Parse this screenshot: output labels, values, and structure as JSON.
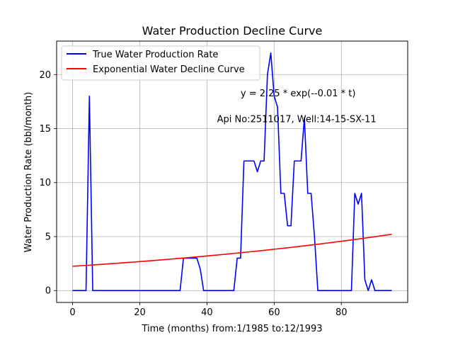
{
  "chart_data": {
    "type": "line",
    "title": "Water Production Decline Curve",
    "xlabel": "Time (months) from:1/1985 to:12/1993",
    "ylabel": "Water Production Rate (bbl/month)",
    "xlim": [
      -4.75,
      99.75
    ],
    "ylim": [
      -1.1,
      23.1
    ],
    "xticks": [
      0,
      20,
      40,
      60,
      80
    ],
    "yticks": [
      0,
      5,
      10,
      15,
      20
    ],
    "grid": true,
    "legend_position": "top-left",
    "annotations": [
      {
        "text": "y = 2.25 * exp(--0.01 * t)",
        "x": 50,
        "y": 18
      },
      {
        "text": "Api No:2511017, Well:14-15-SX-11",
        "x": 43,
        "y": 15.6
      }
    ],
    "series": [
      {
        "name": "True Water Production Rate",
        "color": "#0000ff",
        "x": [
          0,
          1,
          2,
          3,
          4,
          5,
          6,
          7,
          8,
          9,
          10,
          11,
          12,
          13,
          14,
          15,
          16,
          17,
          18,
          19,
          20,
          21,
          22,
          23,
          24,
          25,
          26,
          27,
          28,
          29,
          30,
          31,
          32,
          33,
          34,
          35,
          36,
          37,
          38,
          39,
          40,
          41,
          42,
          43,
          44,
          45,
          46,
          47,
          48,
          49,
          50,
          51,
          52,
          53,
          54,
          55,
          56,
          57,
          58,
          59,
          60,
          61,
          62,
          63,
          64,
          65,
          66,
          67,
          68,
          69,
          70,
          71,
          72,
          73,
          74,
          75,
          76,
          77,
          78,
          79,
          80,
          81,
          82,
          83,
          84,
          85,
          86,
          87,
          88,
          89,
          90,
          91,
          92,
          93,
          94,
          95
        ],
        "y": [
          0,
          0,
          0,
          0,
          0,
          18,
          0,
          0,
          0,
          0,
          0,
          0,
          0,
          0,
          0,
          0,
          0,
          0,
          0,
          0,
          0,
          0,
          0,
          0,
          0,
          0,
          0,
          0,
          0,
          0,
          0,
          0,
          0,
          3,
          3,
          3,
          3,
          3,
          2,
          0,
          0,
          0,
          0,
          0,
          0,
          0,
          0,
          0,
          0,
          3,
          3,
          12,
          12,
          12,
          12,
          11,
          12,
          12,
          20,
          22,
          18,
          17,
          9,
          9,
          6,
          6,
          12,
          12,
          12,
          16,
          9,
          9,
          5,
          0,
          0,
          0,
          0,
          0,
          0,
          0,
          0,
          0,
          0,
          0,
          9,
          8,
          9,
          1,
          0,
          1,
          0,
          0,
          0,
          0,
          0,
          0
        ]
      },
      {
        "name": "Exponential Water Decline Curve",
        "color": "#ff0000",
        "model": {
          "a": 2.25,
          "b": 0.00885,
          "x_start": 0,
          "x_end": 95
        }
      }
    ]
  }
}
